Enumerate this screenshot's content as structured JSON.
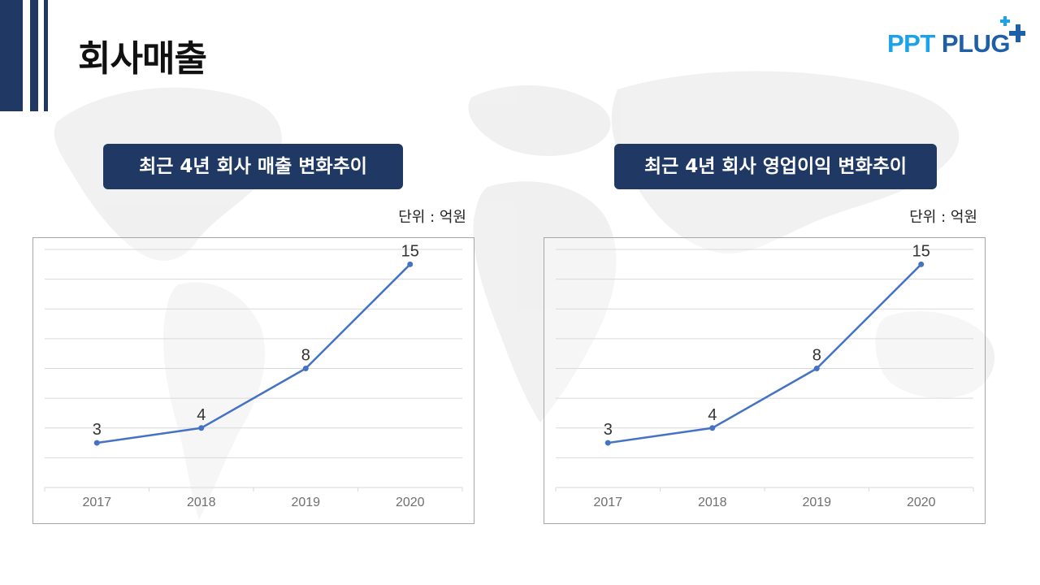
{
  "page": {
    "title": "회사매출",
    "logo": {
      "text_main": "PPT",
      "text_accent": "PLUG",
      "plus": "+"
    },
    "colors": {
      "navy": "#1f3864",
      "line": "#4472c4",
      "grid": "#d9d9d9",
      "logo_light": "#1aa3e8",
      "logo_dark": "#1f5fa8"
    }
  },
  "charts": [
    {
      "pill": "최근 4년 회사 매출 변화추이",
      "unit": "단위 : 억원"
    },
    {
      "pill": "최근 4년 회사 영업이익 변화추이",
      "unit": "단위 : 억원"
    }
  ],
  "chart_data": [
    {
      "type": "line",
      "title": "최근 4년 회사 매출 변화추이",
      "categories": [
        "2017",
        "2018",
        "2019",
        "2020"
      ],
      "values": [
        3,
        4,
        8,
        15
      ],
      "data_labels": [
        "3",
        "4",
        "8",
        "15"
      ],
      "ylim": [
        0,
        16
      ],
      "grid": true,
      "unit": "억원"
    },
    {
      "type": "line",
      "title": "최근 4년 회사 영업이익 변화추이",
      "categories": [
        "2017",
        "2018",
        "2019",
        "2020"
      ],
      "values": [
        3,
        4,
        8,
        15
      ],
      "data_labels": [
        "3",
        "4",
        "8",
        "15"
      ],
      "ylim": [
        0,
        16
      ],
      "grid": true,
      "unit": "억원"
    }
  ]
}
